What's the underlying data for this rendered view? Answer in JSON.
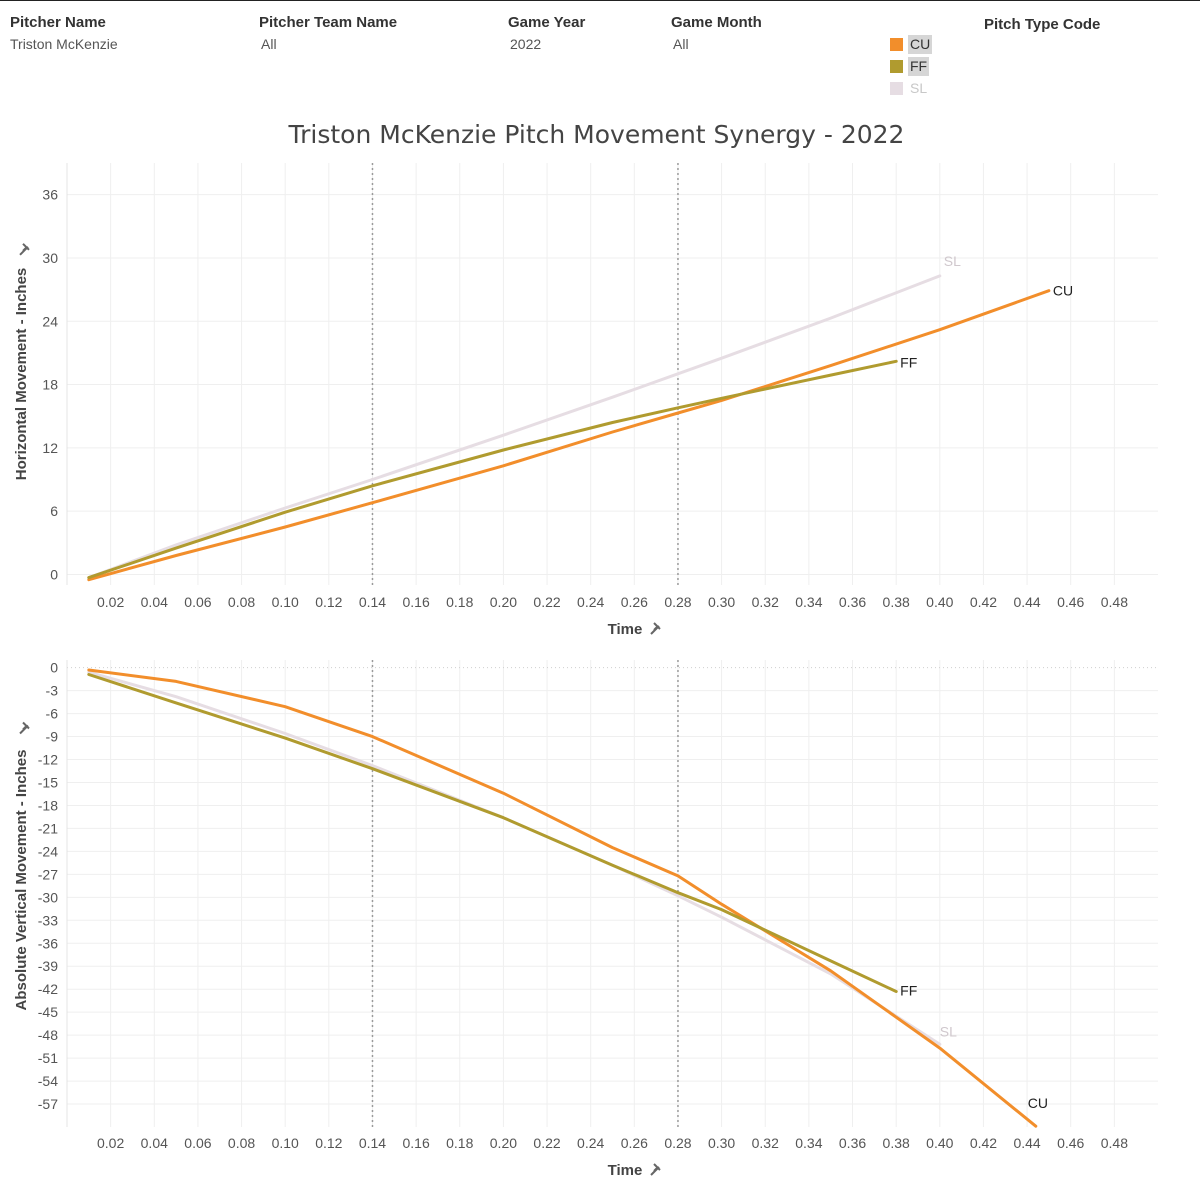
{
  "filters": [
    {
      "label": "Pitcher Name",
      "value": "Triston McKenzie"
    },
    {
      "label": "Pitcher Team Name",
      "value": "All"
    },
    {
      "label": "Game Year",
      "value": "2022"
    },
    {
      "label": "Game Month",
      "value": "All"
    }
  ],
  "legend": {
    "title": "Pitch Type Code",
    "items": [
      {
        "code": "CU",
        "color": "#f28e2b",
        "highlighted": true
      },
      {
        "code": "FF",
        "color": "#b09b2f",
        "highlighted": true
      },
      {
        "code": "SL",
        "color": "#e6dde3",
        "highlighted": false
      }
    ]
  },
  "chart_title": "Triston McKenzie Pitch Movement Synergy - 2022",
  "chart_data": [
    {
      "type": "line",
      "xlabel": "Time",
      "ylabel": "Horizontal Movement - Inches",
      "xlim": [
        0,
        0.5
      ],
      "ylim": [
        -1,
        39
      ],
      "x_ticks": [
        "0.02",
        "0.04",
        "0.06",
        "0.08",
        "0.10",
        "0.12",
        "0.14",
        "0.16",
        "0.18",
        "0.20",
        "0.22",
        "0.24",
        "0.26",
        "0.28",
        "0.30",
        "0.32",
        "0.34",
        "0.36",
        "0.38",
        "0.40",
        "0.42",
        "0.44",
        "0.46",
        "0.48"
      ],
      "y_ticks": [
        "0",
        "6",
        "12",
        "18",
        "24",
        "30",
        "36"
      ],
      "reference_lines_x": [
        0.14,
        0.28
      ],
      "grid": true,
      "series": [
        {
          "name": "SL",
          "color": "#e6dde3",
          "x": [
            0.01,
            0.05,
            0.1,
            0.14,
            0.2,
            0.25,
            0.3,
            0.35,
            0.4
          ],
          "y": [
            -0.3,
            2.8,
            6.3,
            9.0,
            13.2,
            16.8,
            20.5,
            24.3,
            28.3
          ]
        },
        {
          "name": "CU",
          "color": "#f28e2b",
          "x": [
            0.01,
            0.05,
            0.1,
            0.14,
            0.2,
            0.25,
            0.28,
            0.3,
            0.35,
            0.4,
            0.45
          ],
          "y": [
            -0.5,
            1.8,
            4.5,
            6.8,
            10.3,
            13.5,
            15.3,
            16.5,
            19.8,
            23.2,
            26.9
          ]
        },
        {
          "name": "FF",
          "color": "#b09b2f",
          "x": [
            0.01,
            0.05,
            0.1,
            0.14,
            0.2,
            0.25,
            0.28,
            0.3,
            0.35,
            0.38
          ],
          "y": [
            -0.3,
            2.5,
            5.9,
            8.4,
            11.8,
            14.4,
            15.8,
            16.7,
            18.9,
            20.2
          ]
        }
      ]
    },
    {
      "type": "line",
      "xlabel": "Time",
      "ylabel": "Absolute Vertical Movement - Inches",
      "xlim": [
        0,
        0.5
      ],
      "ylim": [
        -60,
        1
      ],
      "x_ticks": [
        "0.02",
        "0.04",
        "0.06",
        "0.08",
        "0.10",
        "0.12",
        "0.14",
        "0.16",
        "0.18",
        "0.20",
        "0.22",
        "0.24",
        "0.26",
        "0.28",
        "0.30",
        "0.32",
        "0.34",
        "0.36",
        "0.38",
        "0.40",
        "0.42",
        "0.44",
        "0.46",
        "0.48"
      ],
      "y_ticks": [
        "0",
        "-3",
        "-6",
        "-9",
        "-12",
        "-15",
        "-18",
        "-21",
        "-24",
        "-27",
        "-30",
        "-33",
        "-36",
        "-39",
        "-42",
        "-45",
        "-48",
        "-51",
        "-54",
        "-57"
      ],
      "reference_lines_x": [
        0.14,
        0.28
      ],
      "grid": true,
      "series": [
        {
          "name": "SL",
          "color": "#e6dde3",
          "x": [
            0.01,
            0.05,
            0.1,
            0.14,
            0.2,
            0.25,
            0.28,
            0.3,
            0.35,
            0.4
          ],
          "y": [
            -0.6,
            -3.8,
            -8.6,
            -12.8,
            -19.6,
            -25.8,
            -29.8,
            -32.6,
            -40.0,
            -49.2
          ]
        },
        {
          "name": "CU",
          "color": "#f28e2b",
          "x": [
            0.01,
            0.05,
            0.1,
            0.14,
            0.2,
            0.25,
            0.28,
            0.3,
            0.35,
            0.4,
            0.444
          ],
          "y": [
            -0.3,
            -1.8,
            -5.1,
            -9.0,
            -16.4,
            -23.5,
            -27.2,
            -30.9,
            -39.6,
            -49.7,
            -59.9
          ]
        },
        {
          "name": "FF",
          "color": "#b09b2f",
          "x": [
            0.01,
            0.05,
            0.1,
            0.14,
            0.2,
            0.25,
            0.28,
            0.3,
            0.35,
            0.38
          ],
          "y": [
            -0.9,
            -4.6,
            -9.2,
            -13.2,
            -19.6,
            -25.8,
            -29.4,
            -31.6,
            -38.3,
            -42.3
          ]
        }
      ]
    }
  ]
}
